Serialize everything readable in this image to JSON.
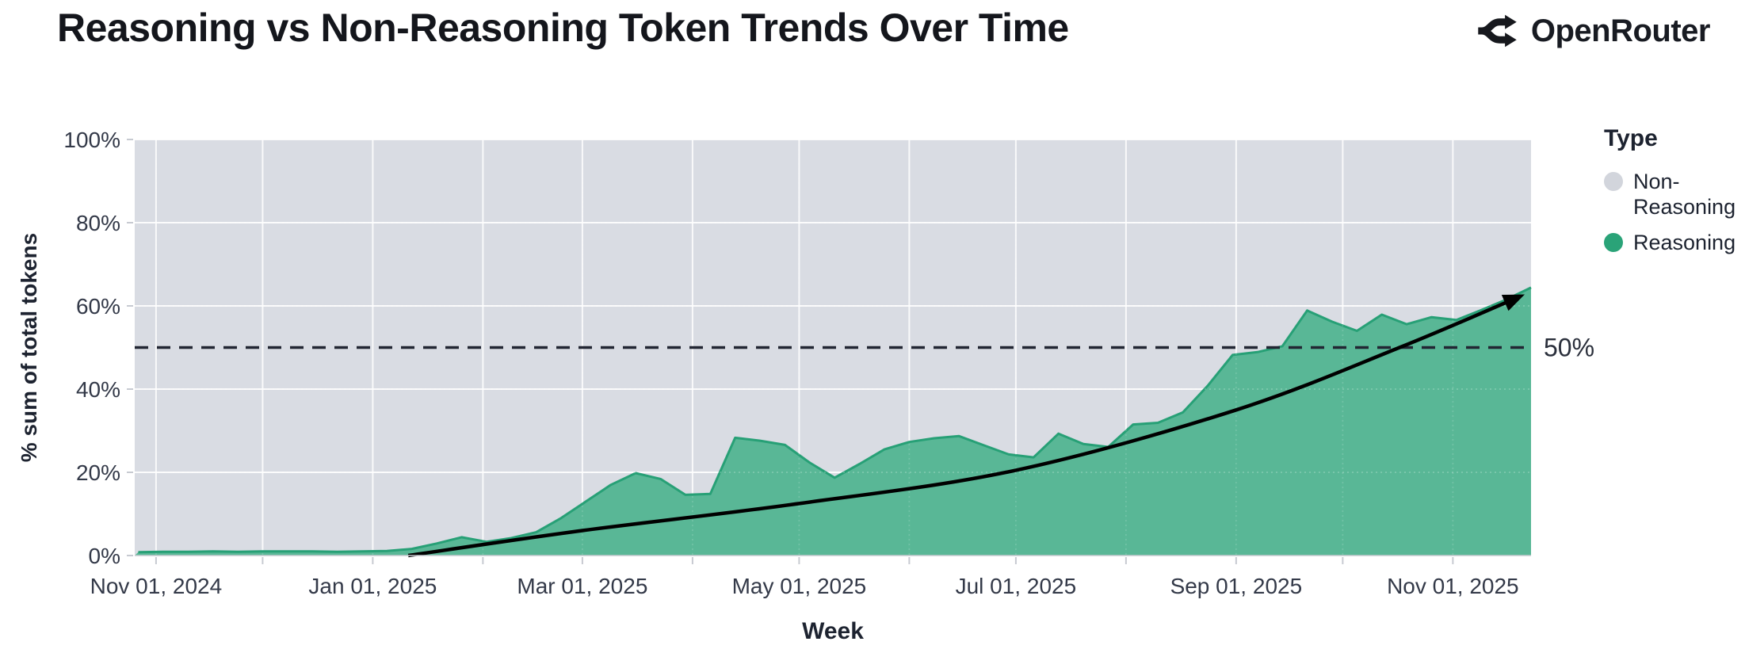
{
  "header": {
    "title": "Reasoning vs Non-Reasoning Token Trends Over Time",
    "brand": "OpenRouter"
  },
  "legend": {
    "title": "Type",
    "items": [
      {
        "label": "Non-Reasoning",
        "color": "#d2d5dc"
      },
      {
        "label": "Reasoning",
        "color": "#2aa378"
      }
    ]
  },
  "chart_data": {
    "type": "area",
    "stacked": true,
    "normalized_percent": true,
    "title": "Reasoning vs Non-Reasoning Token Trends Over Time",
    "xlabel": "Week",
    "ylabel": "% sum of total tokens",
    "x_domain": [
      "2024-10-26",
      "2025-11-23"
    ],
    "ylim": [
      0,
      100
    ],
    "grid": "white gridlines; vertical each month, horizontal each 20%",
    "legend_position": "right",
    "y_ticks": [
      {
        "value": 0,
        "label": "0%"
      },
      {
        "value": 20,
        "label": "20%"
      },
      {
        "value": 40,
        "label": "40%"
      },
      {
        "value": 60,
        "label": "60%"
      },
      {
        "value": 80,
        "label": "80%"
      },
      {
        "value": 100,
        "label": "100%"
      }
    ],
    "x_ticks": [
      {
        "date": "2024-11-01",
        "label": "Nov 01, 2024"
      },
      {
        "date": "2025-01-01",
        "label": "Jan 01, 2025"
      },
      {
        "date": "2025-03-01",
        "label": "Mar 01, 2025"
      },
      {
        "date": "2025-05-01",
        "label": "May 01, 2025"
      },
      {
        "date": "2025-07-01",
        "label": "Jul 01, 2025"
      },
      {
        "date": "2025-09-01",
        "label": "Sep 01, 2025"
      },
      {
        "date": "2025-11-01",
        "label": "Nov 01, 2025"
      }
    ],
    "weeks": [
      "2024-10-27",
      "2024-11-03",
      "2024-11-10",
      "2024-11-17",
      "2024-11-24",
      "2024-12-01",
      "2024-12-08",
      "2024-12-15",
      "2024-12-22",
      "2024-12-29",
      "2025-01-05",
      "2025-01-12",
      "2025-01-19",
      "2025-01-26",
      "2025-02-02",
      "2025-02-09",
      "2025-02-16",
      "2025-02-23",
      "2025-03-02",
      "2025-03-09",
      "2025-03-16",
      "2025-03-23",
      "2025-03-30",
      "2025-04-06",
      "2025-04-13",
      "2025-04-20",
      "2025-04-27",
      "2025-05-04",
      "2025-05-11",
      "2025-05-18",
      "2025-05-25",
      "2025-06-01",
      "2025-06-08",
      "2025-06-15",
      "2025-06-22",
      "2025-06-29",
      "2025-07-06",
      "2025-07-13",
      "2025-07-20",
      "2025-07-27",
      "2025-08-03",
      "2025-08-10",
      "2025-08-17",
      "2025-08-24",
      "2025-08-31",
      "2025-09-07",
      "2025-09-14",
      "2025-09-21",
      "2025-09-28",
      "2025-10-05",
      "2025-10-12",
      "2025-10-19",
      "2025-10-26",
      "2025-11-02",
      "2025-11-09",
      "2025-11-16",
      "2025-11-23"
    ],
    "series": [
      {
        "name": "Reasoning",
        "color": "#55b694",
        "edge_color": "#27a076",
        "values": [
          0.8,
          0.9,
          0.9,
          1.0,
          0.9,
          1.0,
          1.0,
          1.0,
          0.9,
          1.0,
          1.1,
          1.6,
          2.9,
          4.4,
          3.3,
          4.2,
          5.6,
          9.0,
          13.0,
          17.0,
          19.8,
          18.4,
          14.6,
          14.8,
          28.3,
          27.6,
          26.6,
          22.3,
          18.7,
          22.0,
          25.5,
          27.3,
          28.2,
          28.7,
          26.5,
          24.3,
          23.6,
          29.3,
          26.8,
          26.1,
          31.5,
          31.9,
          34.4,
          40.8,
          48.2,
          48.9,
          50.3,
          58.9,
          56.2,
          54.0,
          57.9,
          55.6,
          57.3,
          56.6,
          59.0,
          61.5,
          64.4
        ]
      },
      {
        "name": "Non-Reasoning",
        "color": "#d9dce3",
        "values": [
          99.2,
          99.1,
          99.1,
          99.0,
          99.1,
          99.0,
          99.0,
          99.0,
          99.1,
          99.0,
          98.9,
          98.4,
          97.1,
          95.6,
          96.7,
          95.8,
          94.4,
          91.0,
          87.0,
          83.0,
          80.2,
          81.6,
          85.4,
          85.2,
          71.7,
          72.4,
          73.4,
          77.7,
          81.3,
          78.0,
          74.5,
          72.7,
          71.8,
          71.3,
          73.5,
          75.7,
          76.4,
          70.7,
          73.2,
          73.9,
          68.5,
          68.1,
          65.6,
          59.2,
          51.8,
          51.1,
          49.7,
          41.1,
          43.8,
          46.0,
          42.1,
          44.4,
          42.7,
          43.4,
          41.0,
          38.5,
          35.6
        ]
      }
    ],
    "annotations": {
      "reference_line": {
        "value": 50,
        "label": "50%",
        "style": "dashed",
        "color": "#222633"
      },
      "trend_arrow": {
        "color": "#000000",
        "points": [
          {
            "date": "2025-01-11",
            "value": 0
          },
          {
            "date": "2025-03-01",
            "value": 6
          },
          {
            "date": "2025-05-01",
            "value": 12.5
          },
          {
            "date": "2025-07-01",
            "value": 20.5
          },
          {
            "date": "2025-09-01",
            "value": 35
          },
          {
            "date": "2025-10-17",
            "value": 50
          },
          {
            "date": "2025-11-20",
            "value": 62.3
          }
        ]
      }
    },
    "colors": {
      "plot_background": "#d9dce3",
      "gridline": "#ffffff",
      "tick": "#c7cad1",
      "text": "#1d2330"
    }
  }
}
